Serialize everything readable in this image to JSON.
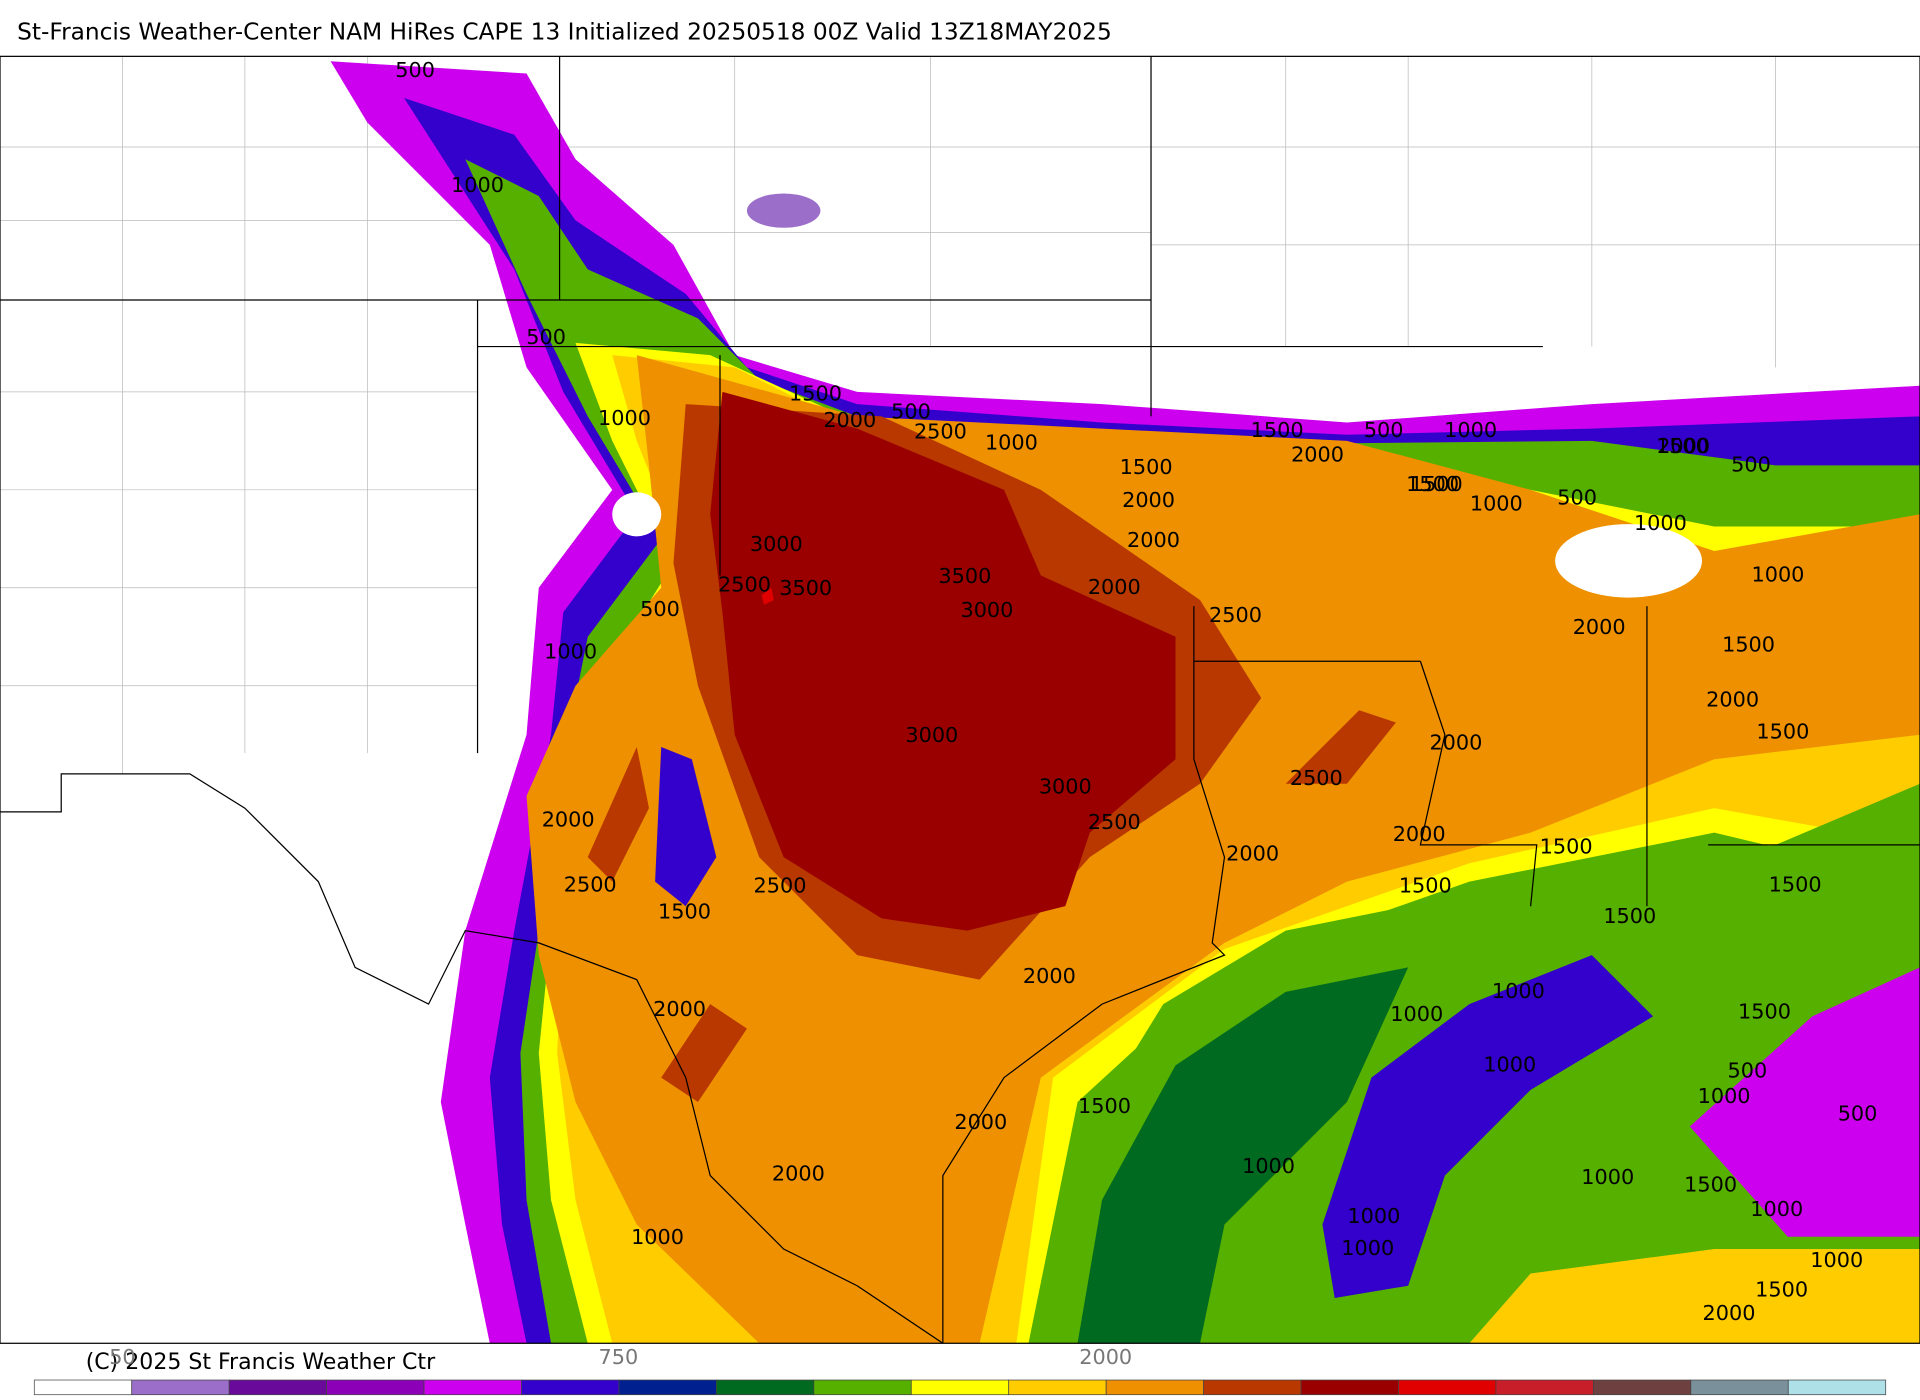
{
  "header": {
    "title": "St-Francis Weather-Center NAM HiRes CAPE  13 Initialized 20250518 00Z Valid 13Z18MAY2025"
  },
  "map": {
    "contour_labels": [
      "500",
      "1000",
      "500",
      "1000",
      "1500",
      "2000",
      "500",
      "2500",
      "1000",
      "1500",
      "2000",
      "2000",
      "500",
      "1000",
      "1500",
      "2000",
      "3000",
      "2500",
      "3500",
      "3500",
      "3000",
      "2000",
      "500",
      "1000",
      "2500",
      "2000",
      "3000",
      "3000",
      "2500",
      "2500",
      "2000",
      "2000",
      "2000",
      "1500",
      "2500",
      "1500",
      "2500",
      "2000",
      "2000",
      "2000",
      "1500",
      "1000",
      "1500",
      "2000",
      "1500",
      "1000",
      "1500",
      "1000",
      "1000",
      "1500",
      "1000",
      "500",
      "1000",
      "1500",
      "1000",
      "2000",
      "1500",
      "1000",
      "1000",
      "500",
      "1000",
      "1500",
      "1000",
      "2000",
      "1500",
      "2000",
      "1500",
      "1000",
      "500",
      "1000",
      "1500",
      "500",
      "2000",
      "1000",
      "1500"
    ]
  },
  "colorbar": {
    "colors": [
      "#ffffff",
      "#9b6fc9",
      "#6a0a9a",
      "#8c00b8",
      "#cc00ee",
      "#3300cc",
      "#002090",
      "#006a20",
      "#55b000",
      "#ffff00",
      "#ffcc00",
      "#ee9000",
      "#b83800",
      "#9a0000",
      "#e00000",
      "#c81e2a",
      "#6e4040",
      "#7a909a",
      "#aee0e8"
    ],
    "labels": [
      "50",
      "750",
      "2000"
    ],
    "copyright": "(C) 2025 St Francis Weather Ctr"
  }
}
